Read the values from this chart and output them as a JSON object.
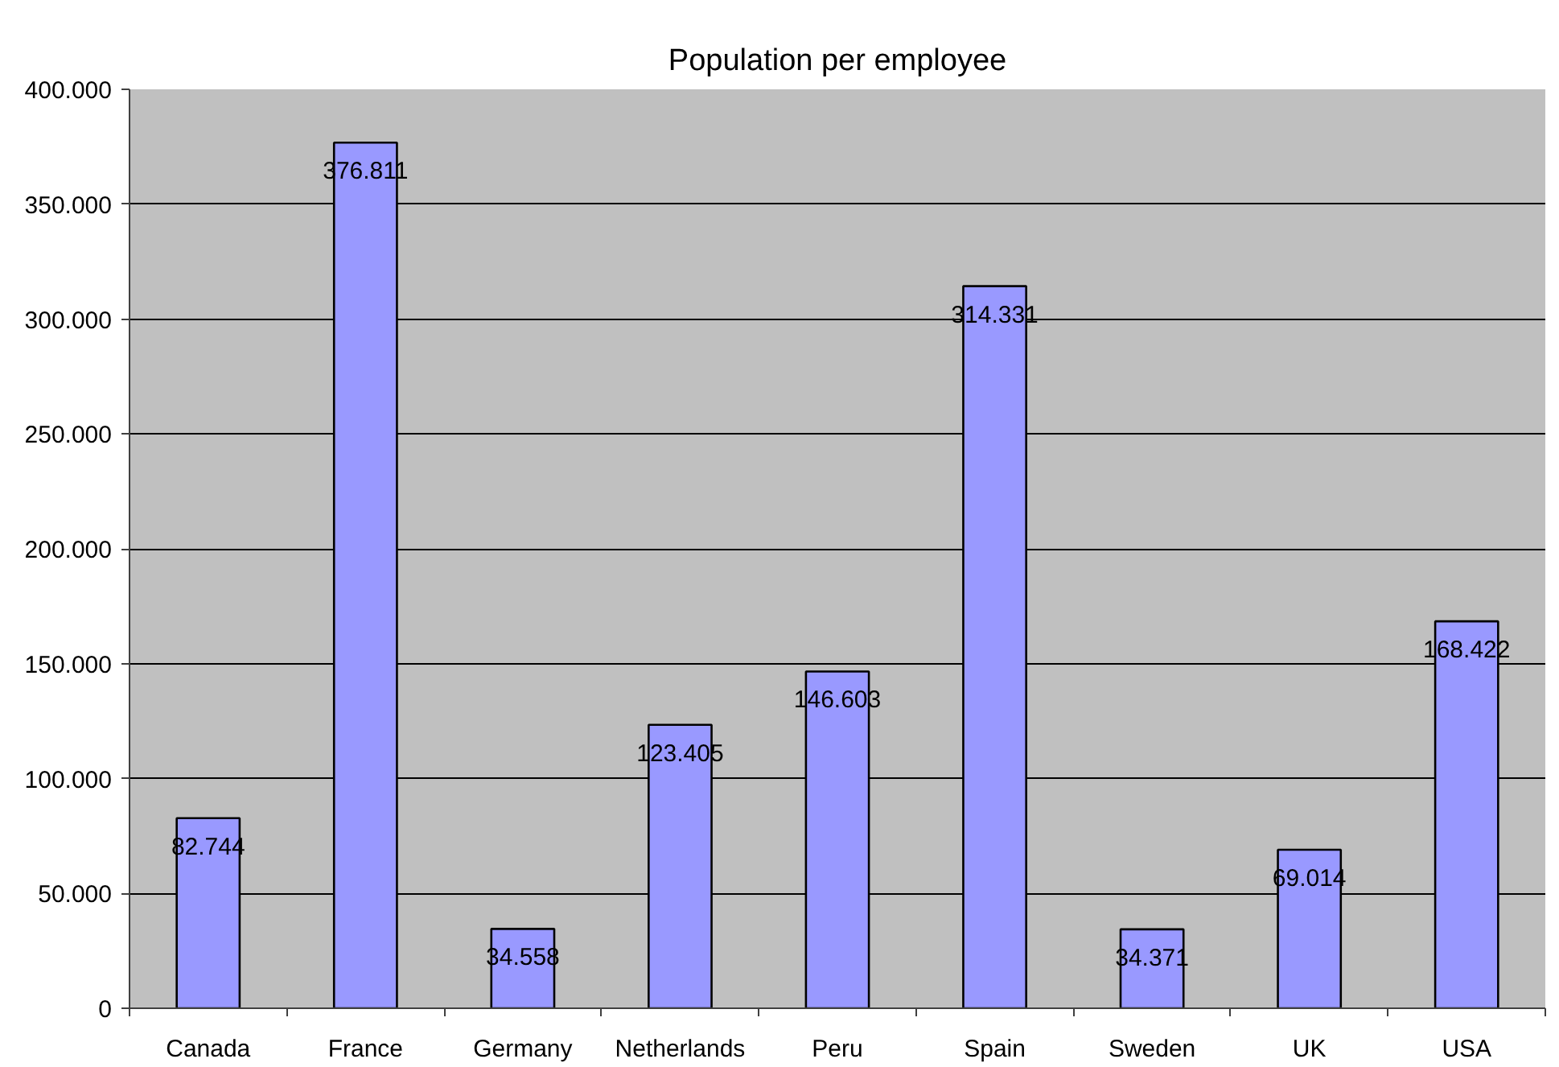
{
  "chart_data": {
    "type": "bar",
    "title": "Population per employee",
    "categories": [
      "Canada",
      "France",
      "Germany",
      "Netherlands",
      "Peru",
      "Spain",
      "Sweden",
      "UK",
      "USA"
    ],
    "values": [
      82744,
      376811,
      34558,
      123405,
      146603,
      314331,
      34371,
      69014,
      168422
    ],
    "value_labels": [
      "82.744",
      "376.811",
      "34.558",
      "123.405",
      "146.603",
      "314.331",
      "34.371",
      "69.014",
      "168.422"
    ],
    "color": "#9999ff",
    "ylim": [
      0,
      400000
    ],
    "yticks": [
      0,
      {
        "value": 50000,
        "label": "50.000"
      },
      {
        "value": 100000,
        "label": "100.000"
      },
      {
        "value": 150000,
        "label": "150.000"
      },
      {
        "value": 200000,
        "label": "200.000"
      },
      {
        "value": 250000,
        "label": "250.000"
      },
      {
        "value": 300000,
        "label": "300.000"
      },
      {
        "value": 350000,
        "label": "350.000"
      },
      {
        "value": 400000,
        "label": "400.000"
      }
    ],
    "grid": "y"
  }
}
